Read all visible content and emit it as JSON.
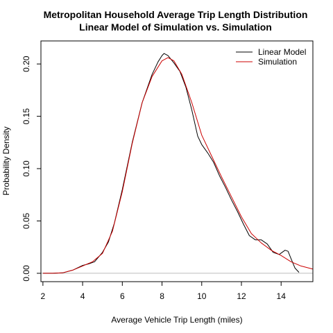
{
  "chart_data": {
    "type": "line",
    "title": "Metropolitan Household Average Trip Length Distribution",
    "subtitle": "Linear Model of Simulation vs. Simulation",
    "xlabel": "Average Vehicle Trip Length (miles)",
    "ylabel": "Probability Density",
    "xlim": [
      1.9,
      15.6
    ],
    "ylim": [
      -0.008,
      0.222
    ],
    "x_ticks": [
      2,
      4,
      6,
      8,
      10,
      12,
      14
    ],
    "x_tick_labels": [
      "2",
      "4",
      "6",
      "8",
      "10",
      "12",
      "14"
    ],
    "y_ticks": [
      0.0,
      0.05,
      0.1,
      0.15,
      0.2
    ],
    "y_tick_labels": [
      "0.00",
      "0.05",
      "0.10",
      "0.15",
      "0.20"
    ],
    "baseline": 0,
    "baseline_color": "#bbbbbb",
    "grid": false,
    "legend_position": "top-right",
    "series": [
      {
        "name": "Linear Model",
        "color": "#000000",
        "points": [
          [
            2.0,
            0.0
          ],
          [
            2.5,
            0.0
          ],
          [
            3.0,
            0.0004
          ],
          [
            3.5,
            0.003
          ],
          [
            4.0,
            0.0075
          ],
          [
            4.3,
            0.009
          ],
          [
            4.6,
            0.011
          ],
          [
            5.0,
            0.02
          ],
          [
            5.3,
            0.03
          ],
          [
            5.6,
            0.048
          ],
          [
            6.0,
            0.08
          ],
          [
            6.5,
            0.125
          ],
          [
            7.0,
            0.163
          ],
          [
            7.5,
            0.19
          ],
          [
            7.8,
            0.202
          ],
          [
            8.0,
            0.208
          ],
          [
            8.1,
            0.21
          ],
          [
            8.3,
            0.208
          ],
          [
            8.6,
            0.201
          ],
          [
            8.9,
            0.193
          ],
          [
            9.2,
            0.178
          ],
          [
            9.5,
            0.156
          ],
          [
            9.8,
            0.131
          ],
          [
            10.0,
            0.123
          ],
          [
            10.3,
            0.115
          ],
          [
            10.6,
            0.106
          ],
          [
            10.9,
            0.093
          ],
          [
            11.2,
            0.082
          ],
          [
            11.5,
            0.07
          ],
          [
            11.8,
            0.059
          ],
          [
            12.1,
            0.047
          ],
          [
            12.4,
            0.036
          ],
          [
            12.7,
            0.032
          ],
          [
            13.0,
            0.032
          ],
          [
            13.3,
            0.028
          ],
          [
            13.6,
            0.02
          ],
          [
            13.9,
            0.018
          ],
          [
            14.2,
            0.022
          ],
          [
            14.35,
            0.021
          ],
          [
            14.5,
            0.014
          ],
          [
            14.7,
            0.005
          ],
          [
            14.9,
            0.0009
          ]
        ]
      },
      {
        "name": "Simulation",
        "color": "#cc0000",
        "points": [
          [
            2.0,
            0.0
          ],
          [
            2.5,
            0.0
          ],
          [
            3.0,
            0.0005
          ],
          [
            3.5,
            0.003
          ],
          [
            4.0,
            0.007
          ],
          [
            4.5,
            0.011
          ],
          [
            5.0,
            0.019
          ],
          [
            5.5,
            0.04
          ],
          [
            6.0,
            0.078
          ],
          [
            6.5,
            0.124
          ],
          [
            7.0,
            0.163
          ],
          [
            7.5,
            0.188
          ],
          [
            8.0,
            0.203
          ],
          [
            8.3,
            0.206
          ],
          [
            8.6,
            0.203
          ],
          [
            9.0,
            0.19
          ],
          [
            9.5,
            0.163
          ],
          [
            10.0,
            0.132
          ],
          [
            10.5,
            0.112
          ],
          [
            11.0,
            0.092
          ],
          [
            11.5,
            0.073
          ],
          [
            12.0,
            0.054
          ],
          [
            12.5,
            0.038
          ],
          [
            13.0,
            0.029
          ],
          [
            13.5,
            0.022
          ],
          [
            14.0,
            0.017
          ],
          [
            14.5,
            0.011
          ],
          [
            15.0,
            0.007
          ],
          [
            15.6,
            0.004
          ]
        ]
      }
    ]
  }
}
